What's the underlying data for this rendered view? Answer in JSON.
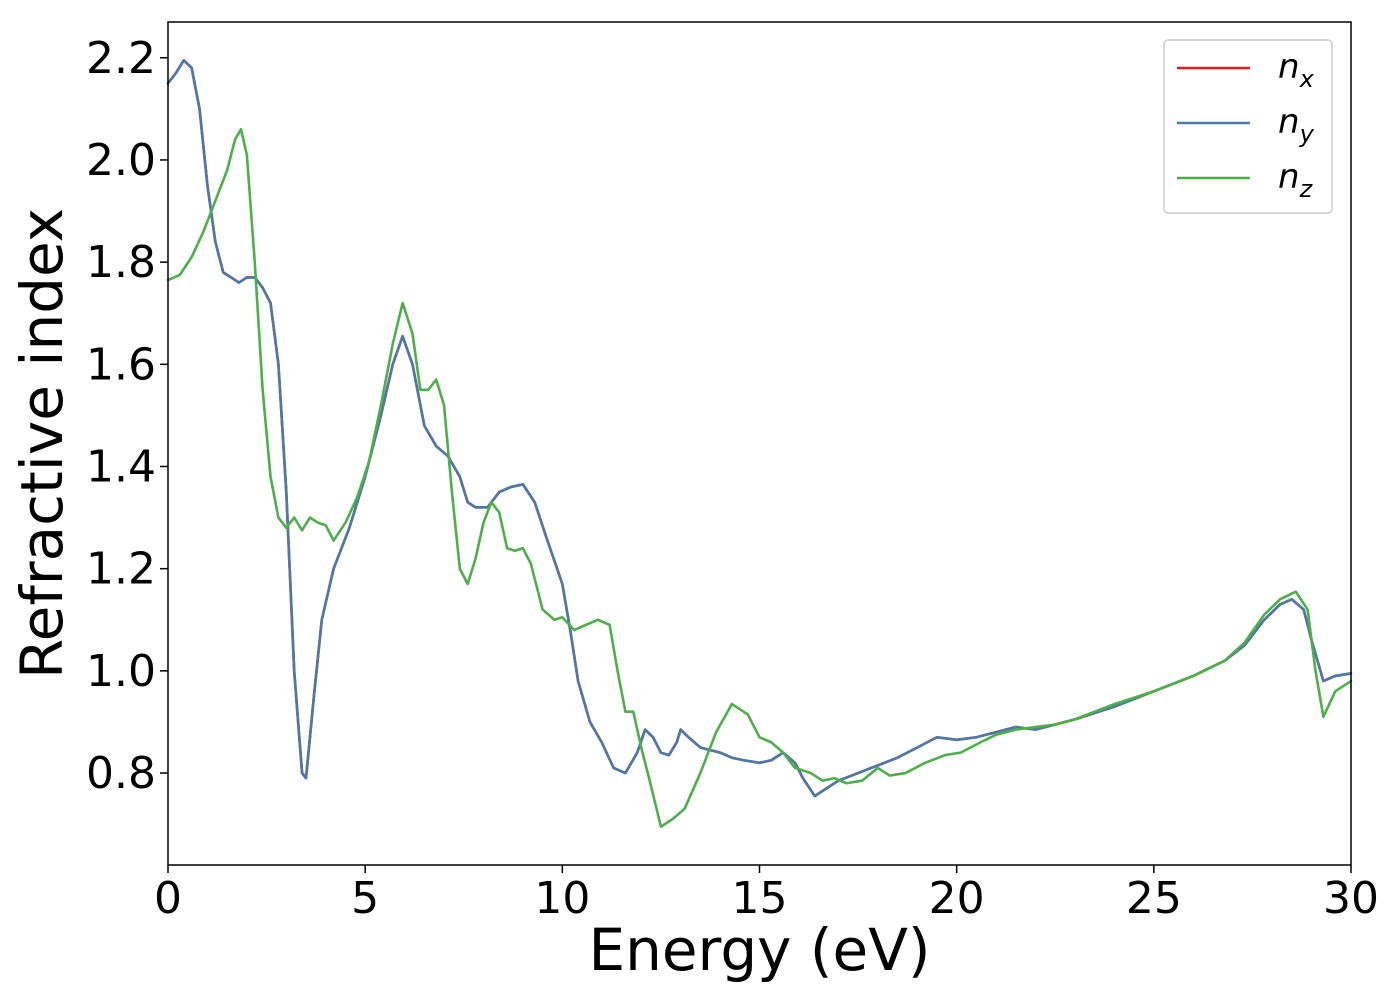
{
  "chart_data": {
    "type": "line",
    "title": "",
    "xlabel": "Energy (eV)",
    "ylabel": "Refractive index",
    "xlim": [
      0,
      30
    ],
    "ylim": [
      0.62,
      2.27
    ],
    "xticks": [
      0,
      5,
      10,
      15,
      20,
      25,
      30
    ],
    "xtick_labels": [
      "0",
      "5",
      "10",
      "15",
      "20",
      "25",
      "30"
    ],
    "yticks": [
      0.8,
      1.0,
      1.2,
      1.4,
      1.6,
      1.8,
      2.0,
      2.2
    ],
    "ytick_labels": [
      "0.8",
      "1.0",
      "1.2",
      "1.4",
      "1.6",
      "1.8",
      "2.0",
      "2.2"
    ],
    "grid": false,
    "legend_position": "top-right",
    "legend": [
      {
        "base": "n",
        "sub": "x",
        "color": "#e41a1c"
      },
      {
        "base": "n",
        "sub": "y",
        "color": "#4a7aa8"
      },
      {
        "base": "n",
        "sub": "z",
        "color": "#4daf4a"
      }
    ],
    "series": [
      {
        "name": "n_x",
        "color": "#e41a1c",
        "points": [
          [
            0,
            2.15
          ],
          [
            0.2,
            2.17
          ],
          [
            0.4,
            2.195
          ],
          [
            0.6,
            2.18
          ],
          [
            0.8,
            2.1
          ],
          [
            1.0,
            1.95
          ],
          [
            1.2,
            1.84
          ],
          [
            1.4,
            1.78
          ],
          [
            1.6,
            1.77
          ],
          [
            1.8,
            1.76
          ],
          [
            2.0,
            1.77
          ],
          [
            2.2,
            1.77
          ],
          [
            2.4,
            1.75
          ],
          [
            2.6,
            1.72
          ],
          [
            2.8,
            1.6
          ],
          [
            3.0,
            1.35
          ],
          [
            3.2,
            1.0
          ],
          [
            3.4,
            0.8
          ],
          [
            3.5,
            0.79
          ],
          [
            3.7,
            0.95
          ],
          [
            3.9,
            1.1
          ],
          [
            4.2,
            1.2
          ],
          [
            4.6,
            1.28
          ],
          [
            5.0,
            1.38
          ],
          [
            5.4,
            1.5
          ],
          [
            5.7,
            1.6
          ],
          [
            5.95,
            1.655
          ],
          [
            6.2,
            1.6
          ],
          [
            6.5,
            1.48
          ],
          [
            6.8,
            1.44
          ],
          [
            7.1,
            1.42
          ],
          [
            7.4,
            1.38
          ],
          [
            7.6,
            1.33
          ],
          [
            7.8,
            1.32
          ],
          [
            8.1,
            1.32
          ],
          [
            8.4,
            1.35
          ],
          [
            8.7,
            1.36
          ],
          [
            9.0,
            1.365
          ],
          [
            9.3,
            1.33
          ],
          [
            9.6,
            1.26
          ],
          [
            10.0,
            1.17
          ],
          [
            10.2,
            1.08
          ],
          [
            10.4,
            0.98
          ],
          [
            10.7,
            0.9
          ],
          [
            11.0,
            0.86
          ],
          [
            11.3,
            0.81
          ],
          [
            11.6,
            0.8
          ],
          [
            11.9,
            0.84
          ],
          [
            12.1,
            0.885
          ],
          [
            12.3,
            0.87
          ],
          [
            12.5,
            0.84
          ],
          [
            12.7,
            0.835
          ],
          [
            12.9,
            0.86
          ],
          [
            13.0,
            0.885
          ],
          [
            13.2,
            0.87
          ],
          [
            13.5,
            0.85
          ],
          [
            14.0,
            0.84
          ],
          [
            14.3,
            0.83
          ],
          [
            14.6,
            0.825
          ],
          [
            15.0,
            0.82
          ],
          [
            15.3,
            0.825
          ],
          [
            15.6,
            0.84
          ],
          [
            15.9,
            0.82
          ],
          [
            16.1,
            0.79
          ],
          [
            16.4,
            0.755
          ],
          [
            16.7,
            0.77
          ],
          [
            17.0,
            0.785
          ],
          [
            17.5,
            0.8
          ],
          [
            18.0,
            0.815
          ],
          [
            18.5,
            0.83
          ],
          [
            19.0,
            0.85
          ],
          [
            19.5,
            0.87
          ],
          [
            20.0,
            0.865
          ],
          [
            20.5,
            0.87
          ],
          [
            21.0,
            0.88
          ],
          [
            21.5,
            0.89
          ],
          [
            22.0,
            0.885
          ],
          [
            22.5,
            0.895
          ],
          [
            23.0,
            0.905
          ],
          [
            24.0,
            0.93
          ],
          [
            25.0,
            0.96
          ],
          [
            26.0,
            0.99
          ],
          [
            26.8,
            1.02
          ],
          [
            27.3,
            1.05
          ],
          [
            27.8,
            1.1
          ],
          [
            28.2,
            1.13
          ],
          [
            28.5,
            1.14
          ],
          [
            28.8,
            1.12
          ],
          [
            29.0,
            1.06
          ],
          [
            29.3,
            0.98
          ],
          [
            29.6,
            0.99
          ],
          [
            30.0,
            0.995
          ]
        ]
      },
      {
        "name": "n_y",
        "color": "#4a7aa8",
        "points": [
          [
            0,
            2.15
          ],
          [
            0.2,
            2.17
          ],
          [
            0.4,
            2.195
          ],
          [
            0.6,
            2.18
          ],
          [
            0.8,
            2.1
          ],
          [
            1.0,
            1.95
          ],
          [
            1.2,
            1.84
          ],
          [
            1.4,
            1.78
          ],
          [
            1.6,
            1.77
          ],
          [
            1.8,
            1.76
          ],
          [
            2.0,
            1.77
          ],
          [
            2.2,
            1.77
          ],
          [
            2.4,
            1.75
          ],
          [
            2.6,
            1.72
          ],
          [
            2.8,
            1.6
          ],
          [
            3.0,
            1.35
          ],
          [
            3.2,
            1.0
          ],
          [
            3.4,
            0.8
          ],
          [
            3.5,
            0.79
          ],
          [
            3.7,
            0.95
          ],
          [
            3.9,
            1.1
          ],
          [
            4.2,
            1.2
          ],
          [
            4.6,
            1.28
          ],
          [
            5.0,
            1.38
          ],
          [
            5.4,
            1.5
          ],
          [
            5.7,
            1.6
          ],
          [
            5.95,
            1.655
          ],
          [
            6.2,
            1.6
          ],
          [
            6.5,
            1.48
          ],
          [
            6.8,
            1.44
          ],
          [
            7.1,
            1.42
          ],
          [
            7.4,
            1.38
          ],
          [
            7.6,
            1.33
          ],
          [
            7.8,
            1.32
          ],
          [
            8.1,
            1.32
          ],
          [
            8.4,
            1.35
          ],
          [
            8.7,
            1.36
          ],
          [
            9.0,
            1.365
          ],
          [
            9.3,
            1.33
          ],
          [
            9.6,
            1.26
          ],
          [
            10.0,
            1.17
          ],
          [
            10.2,
            1.08
          ],
          [
            10.4,
            0.98
          ],
          [
            10.7,
            0.9
          ],
          [
            11.0,
            0.86
          ],
          [
            11.3,
            0.81
          ],
          [
            11.6,
            0.8
          ],
          [
            11.9,
            0.84
          ],
          [
            12.1,
            0.885
          ],
          [
            12.3,
            0.87
          ],
          [
            12.5,
            0.84
          ],
          [
            12.7,
            0.835
          ],
          [
            12.9,
            0.86
          ],
          [
            13.0,
            0.885
          ],
          [
            13.2,
            0.87
          ],
          [
            13.5,
            0.85
          ],
          [
            14.0,
            0.84
          ],
          [
            14.3,
            0.83
          ],
          [
            14.6,
            0.825
          ],
          [
            15.0,
            0.82
          ],
          [
            15.3,
            0.825
          ],
          [
            15.6,
            0.84
          ],
          [
            15.9,
            0.82
          ],
          [
            16.1,
            0.79
          ],
          [
            16.4,
            0.755
          ],
          [
            16.7,
            0.77
          ],
          [
            17.0,
            0.785
          ],
          [
            17.5,
            0.8
          ],
          [
            18.0,
            0.815
          ],
          [
            18.5,
            0.83
          ],
          [
            19.0,
            0.85
          ],
          [
            19.5,
            0.87
          ],
          [
            20.0,
            0.865
          ],
          [
            20.5,
            0.87
          ],
          [
            21.0,
            0.88
          ],
          [
            21.5,
            0.89
          ],
          [
            22.0,
            0.885
          ],
          [
            22.5,
            0.895
          ],
          [
            23.0,
            0.905
          ],
          [
            24.0,
            0.93
          ],
          [
            25.0,
            0.96
          ],
          [
            26.0,
            0.99
          ],
          [
            26.8,
            1.02
          ],
          [
            27.3,
            1.05
          ],
          [
            27.8,
            1.1
          ],
          [
            28.2,
            1.13
          ],
          [
            28.5,
            1.14
          ],
          [
            28.8,
            1.12
          ],
          [
            29.0,
            1.06
          ],
          [
            29.3,
            0.98
          ],
          [
            29.6,
            0.99
          ],
          [
            30.0,
            0.995
          ]
        ]
      },
      {
        "name": "n_z",
        "color": "#4daf4a",
        "points": [
          [
            0,
            1.765
          ],
          [
            0.3,
            1.775
          ],
          [
            0.6,
            1.81
          ],
          [
            0.9,
            1.86
          ],
          [
            1.2,
            1.92
          ],
          [
            1.5,
            1.98
          ],
          [
            1.7,
            2.04
          ],
          [
            1.85,
            2.06
          ],
          [
            2.0,
            2.01
          ],
          [
            2.2,
            1.8
          ],
          [
            2.4,
            1.55
          ],
          [
            2.6,
            1.38
          ],
          [
            2.8,
            1.3
          ],
          [
            3.0,
            1.28
          ],
          [
            3.2,
            1.3
          ],
          [
            3.4,
            1.275
          ],
          [
            3.6,
            1.3
          ],
          [
            3.8,
            1.29
          ],
          [
            4.0,
            1.285
          ],
          [
            4.2,
            1.255
          ],
          [
            4.5,
            1.29
          ],
          [
            4.8,
            1.34
          ],
          [
            5.1,
            1.41
          ],
          [
            5.4,
            1.52
          ],
          [
            5.7,
            1.64
          ],
          [
            5.95,
            1.72
          ],
          [
            6.2,
            1.66
          ],
          [
            6.4,
            1.55
          ],
          [
            6.6,
            1.55
          ],
          [
            6.8,
            1.57
          ],
          [
            7.0,
            1.52
          ],
          [
            7.2,
            1.35
          ],
          [
            7.4,
            1.2
          ],
          [
            7.6,
            1.17
          ],
          [
            7.8,
            1.22
          ],
          [
            8.0,
            1.29
          ],
          [
            8.2,
            1.33
          ],
          [
            8.4,
            1.31
          ],
          [
            8.6,
            1.24
          ],
          [
            8.8,
            1.235
          ],
          [
            9.0,
            1.24
          ],
          [
            9.2,
            1.21
          ],
          [
            9.5,
            1.12
          ],
          [
            9.8,
            1.1
          ],
          [
            10.0,
            1.105
          ],
          [
            10.3,
            1.08
          ],
          [
            10.6,
            1.09
          ],
          [
            10.9,
            1.1
          ],
          [
            11.2,
            1.09
          ],
          [
            11.4,
            1.0
          ],
          [
            11.6,
            0.92
          ],
          [
            11.8,
            0.92
          ],
          [
            12.0,
            0.85
          ],
          [
            12.2,
            0.79
          ],
          [
            12.5,
            0.695
          ],
          [
            12.8,
            0.71
          ],
          [
            13.1,
            0.73
          ],
          [
            13.5,
            0.8
          ],
          [
            13.9,
            0.88
          ],
          [
            14.3,
            0.935
          ],
          [
            14.7,
            0.915
          ],
          [
            15.0,
            0.87
          ],
          [
            15.3,
            0.86
          ],
          [
            15.6,
            0.84
          ],
          [
            15.9,
            0.81
          ],
          [
            16.3,
            0.8
          ],
          [
            16.6,
            0.785
          ],
          [
            16.9,
            0.79
          ],
          [
            17.2,
            0.78
          ],
          [
            17.6,
            0.785
          ],
          [
            18.0,
            0.81
          ],
          [
            18.3,
            0.795
          ],
          [
            18.7,
            0.8
          ],
          [
            19.2,
            0.82
          ],
          [
            19.7,
            0.835
          ],
          [
            20.1,
            0.84
          ],
          [
            20.6,
            0.86
          ],
          [
            21.0,
            0.875
          ],
          [
            21.5,
            0.885
          ],
          [
            22.0,
            0.89
          ],
          [
            22.5,
            0.895
          ],
          [
            23.0,
            0.905
          ],
          [
            24.0,
            0.935
          ],
          [
            25.0,
            0.96
          ],
          [
            26.0,
            0.99
          ],
          [
            26.8,
            1.02
          ],
          [
            27.3,
            1.055
          ],
          [
            27.8,
            1.11
          ],
          [
            28.2,
            1.14
          ],
          [
            28.6,
            1.155
          ],
          [
            28.9,
            1.12
          ],
          [
            29.1,
            1.0
          ],
          [
            29.3,
            0.91
          ],
          [
            29.6,
            0.96
          ],
          [
            30.0,
            0.98
          ]
        ]
      }
    ]
  }
}
